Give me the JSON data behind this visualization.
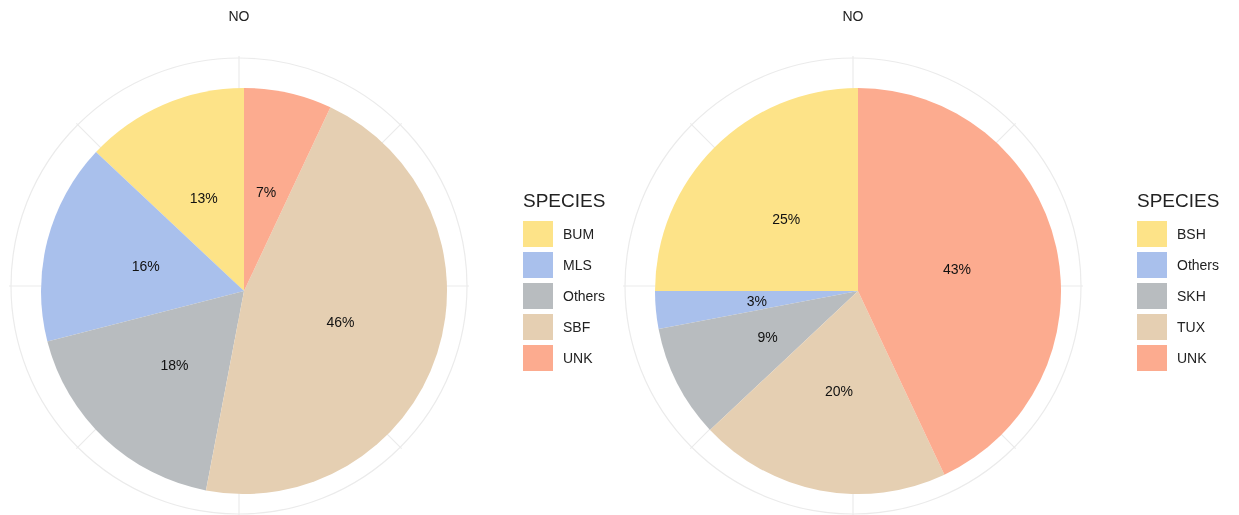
{
  "chart_data": [
    {
      "type": "pie",
      "title": "NO",
      "legend_title": "SPECIES",
      "legend": "right",
      "grid": true,
      "data_labels": true,
      "categories": [
        "BUM",
        "MLS",
        "Others",
        "SBF",
        "UNK"
      ],
      "values": [
        13,
        16,
        18,
        46,
        7
      ],
      "value_labels": [
        "13%",
        "16%",
        "18%",
        "46%",
        "7%"
      ],
      "colors": [
        "#fde388",
        "#a9c0ec",
        "#b8bcbf",
        "#e5cfb2",
        "#fcab8f"
      ]
    },
    {
      "type": "pie",
      "title": "NO",
      "legend_title": "SPECIES",
      "legend": "right",
      "grid": true,
      "data_labels": true,
      "categories": [
        "BSH",
        "Others",
        "SKH",
        "TUX",
        "UNK"
      ],
      "values": [
        25,
        3,
        9,
        20,
        43
      ],
      "value_labels": [
        "25%",
        "3%",
        "9%",
        "20%",
        "43%"
      ],
      "colors": [
        "#fde388",
        "#a9c0ec",
        "#b8bcbf",
        "#e5cfb2",
        "#fcab8f"
      ]
    }
  ]
}
